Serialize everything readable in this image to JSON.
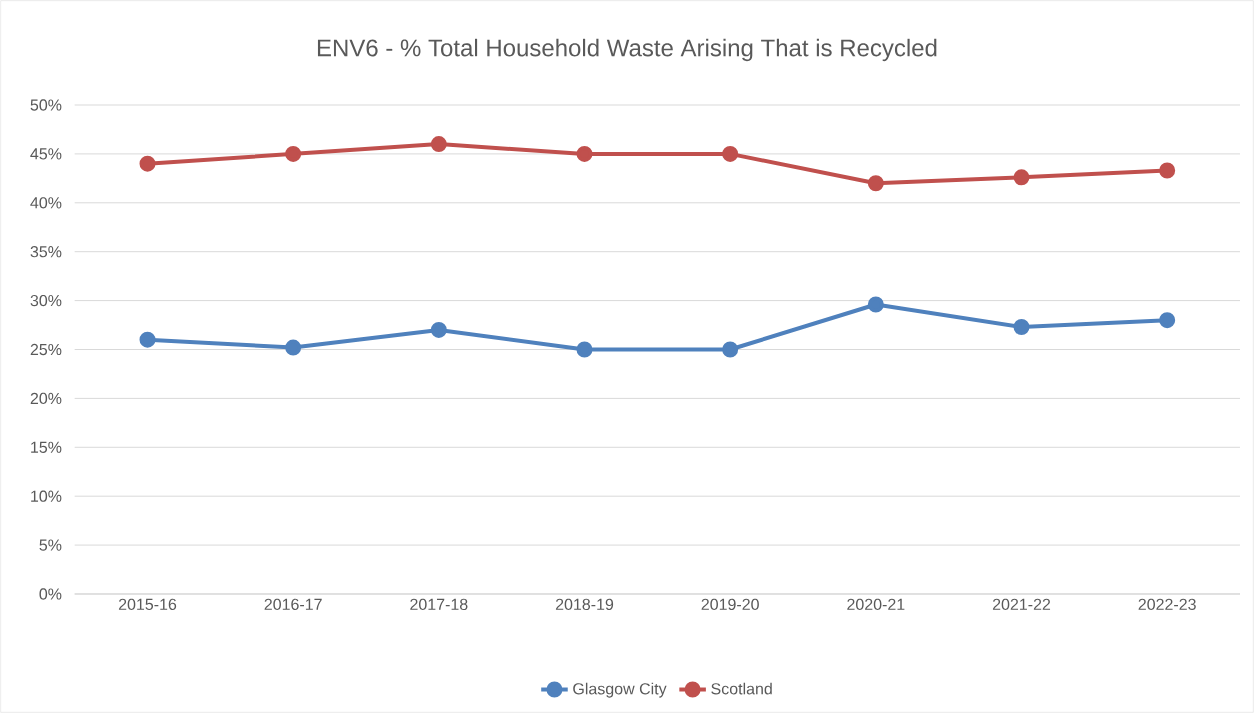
{
  "chart_data": {
    "type": "line",
    "title": "ENV6 - % Total Household Waste Arising That is Recycled",
    "categories": [
      "2015-16",
      "2016-17",
      "2017-18",
      "2018-19",
      "2019-20",
      "2020-21",
      "2021-22",
      "2022-23"
    ],
    "series": [
      {
        "name": "Glasgow City",
        "color": "#4f81bd",
        "values": [
          26,
          25.2,
          27,
          25,
          25,
          29.6,
          27.3,
          28
        ]
      },
      {
        "name": "Scotland",
        "color": "#c0504d",
        "values": [
          44,
          45,
          46,
          45,
          45,
          42,
          42.6,
          43.3
        ]
      }
    ],
    "ylim": [
      0,
      50
    ],
    "yticks": [
      {
        "value": 0,
        "label": "0%"
      },
      {
        "value": 5,
        "label": "5%"
      },
      {
        "value": 10,
        "label": "10%"
      },
      {
        "value": 15,
        "label": "15%"
      },
      {
        "value": 20,
        "label": "20%"
      },
      {
        "value": 25,
        "label": "25%"
      },
      {
        "value": 30,
        "label": "30%"
      },
      {
        "value": 35,
        "label": "35%"
      },
      {
        "value": 40,
        "label": "40%"
      },
      {
        "value": 45,
        "label": "45%"
      },
      {
        "value": 50,
        "label": "50%"
      }
    ],
    "grid": "y",
    "legend": "bottom",
    "marker": "circle",
    "line_style": "solid"
  }
}
